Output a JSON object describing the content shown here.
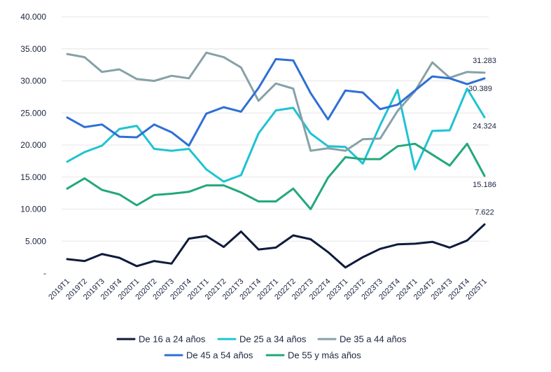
{
  "chart_data": {
    "type": "line",
    "title": "",
    "xlabel": "",
    "ylabel": "",
    "ylim": [
      0,
      40000
    ],
    "y_ticks": [
      {
        "value": 0,
        "label": "-"
      },
      {
        "value": 5000,
        "label": "5.000"
      },
      {
        "value": 10000,
        "label": "10.000"
      },
      {
        "value": 15000,
        "label": "15.000"
      },
      {
        "value": 20000,
        "label": "20.000"
      },
      {
        "value": 25000,
        "label": "25.000"
      },
      {
        "value": 30000,
        "label": "30.000"
      },
      {
        "value": 35000,
        "label": "35.000"
      },
      {
        "value": 40000,
        "label": "40.000"
      }
    ],
    "grid": "horizontal",
    "legend_position": "bottom",
    "categories": [
      "2019T1",
      "2019T2",
      "2019T3",
      "2019T4",
      "2020T1",
      "2020T2",
      "2020T3",
      "2020T4",
      "2021T1",
      "2021T2",
      "2021T3",
      "2021T4",
      "2022T1",
      "2022T2",
      "2022T3",
      "2022T4",
      "2023T1",
      "2023T2",
      "2023T3",
      "2023T4",
      "2024T1",
      "2024T2",
      "2024T3",
      "2024T4",
      "2025T1"
    ],
    "series": [
      {
        "name": "De 16 a 24 años",
        "color": "#0f1b3d",
        "values": [
          2200,
          1900,
          3000,
          2400,
          1100,
          1900,
          1500,
          5400,
          5800,
          4100,
          6500,
          3700,
          4000,
          5900,
          5300,
          3300,
          900,
          2500,
          3800,
          4500,
          4600,
          4900,
          4000,
          5100,
          7622
        ],
        "end_label": "7.622"
      },
      {
        "name": "De 25 a 34 años",
        "color": "#1fc3d3",
        "values": [
          17400,
          18900,
          19900,
          22500,
          23000,
          19400,
          19100,
          19400,
          16200,
          14300,
          15300,
          21800,
          25400,
          25800,
          21800,
          19800,
          19700,
          17100,
          23100,
          28600,
          16200,
          22200,
          22300,
          28800,
          24324
        ],
        "end_label": "24.324"
      },
      {
        "name": "De 35 a 44 años",
        "color": "#86a1a8",
        "values": [
          34200,
          33700,
          31400,
          31800,
          30300,
          30000,
          30800,
          30400,
          34400,
          33700,
          32100,
          26900,
          29600,
          28800,
          19100,
          19500,
          19100,
          20900,
          21000,
          25300,
          28400,
          32900,
          30500,
          31400,
          31283
        ],
        "end_label": "31.283"
      },
      {
        "name": "De 45 a 54 años",
        "color": "#2e6fd6",
        "values": [
          24300,
          22800,
          23200,
          21300,
          21200,
          23200,
          22000,
          19900,
          24900,
          25900,
          25200,
          28900,
          33400,
          33200,
          28100,
          24000,
          28500,
          28200,
          25600,
          26300,
          28500,
          30700,
          30400,
          29500,
          30389
        ],
        "end_label": "30.389"
      },
      {
        "name": "De 55 y más años",
        "color": "#23a77e",
        "values": [
          13200,
          14800,
          13000,
          12300,
          10600,
          12200,
          12400,
          12700,
          13700,
          13700,
          12600,
          11200,
          11200,
          13200,
          10000,
          14900,
          18100,
          17800,
          17800,
          19800,
          20200,
          18500,
          16800,
          20200,
          15186
        ],
        "end_label": "15.186"
      }
    ]
  }
}
